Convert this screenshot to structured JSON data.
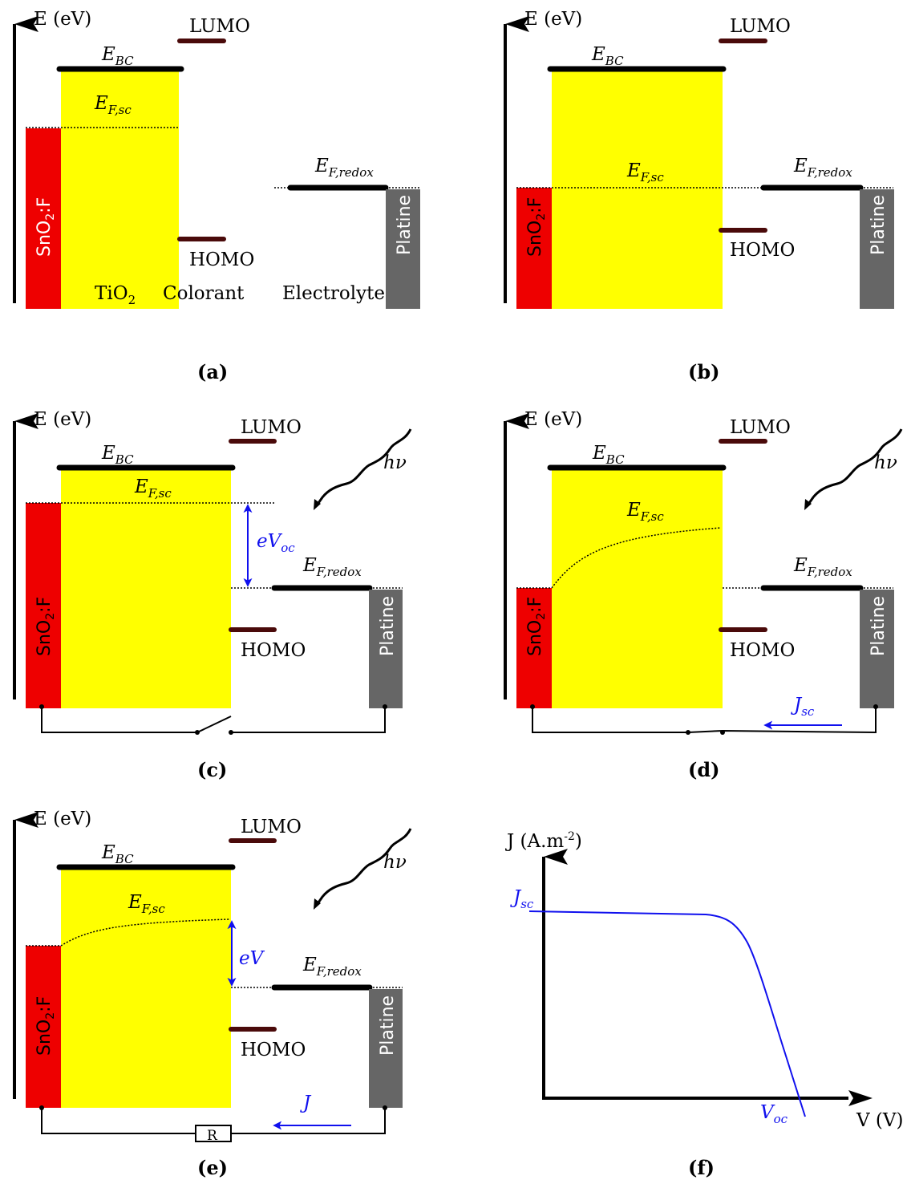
{
  "energy_axis": "E (eV)",
  "labels": {
    "lumo": "LUMO",
    "homo": "HOMO",
    "ebc_main": "E",
    "ebc_sub": "BC",
    "efsc_main": "E",
    "efsc_sub": "F,sc",
    "efredox_main": "E",
    "efredox_sub": "F,redox",
    "fto_main": "SnO",
    "fto_sub": "2",
    "fto_tail": ":F",
    "platine": "Platine",
    "tio2_main": "TiO",
    "tio2_sub": "2",
    "colorant": "Colorant",
    "electrolyte": "Electrolyte",
    "hnu": "hν",
    "evoc_main": "eV",
    "evoc_sub": "oc",
    "ev": "eV",
    "jsc_main": "J",
    "jsc_sub": "sc",
    "j": "J",
    "r": "R"
  },
  "captions": [
    "(a)",
    "(b)",
    "(c)",
    "(d)",
    "(e)",
    "(f)"
  ],
  "jv_plot": {
    "y_axis_main": "J (A.m",
    "y_axis_sup": "-2",
    "y_axis_close": ")",
    "x_axis": "V (V)",
    "jsc_main": "J",
    "jsc_sub": "sc",
    "voc_main": "V",
    "voc_sub": "oc"
  },
  "colors": {
    "fto": "#ee0000",
    "tio2": "#ffff00",
    "platine": "#666666",
    "levels": "#4a0a0a",
    "annotation": "#1010ee"
  }
}
